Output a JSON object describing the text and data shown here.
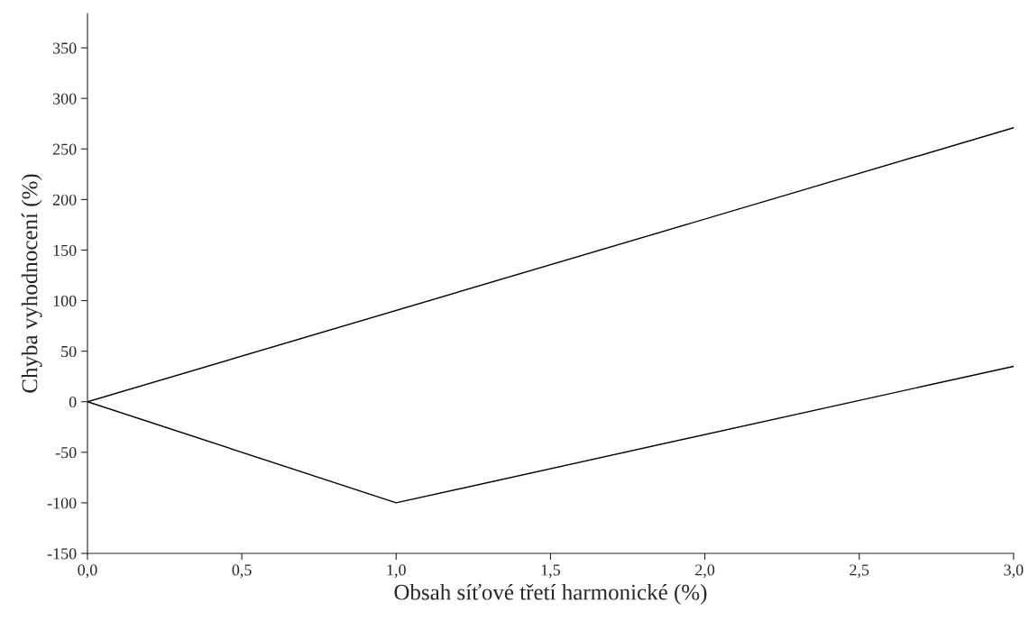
{
  "chart_data": {
    "type": "line",
    "xlabel": "Obsah síťové třetí harmonické (%)",
    "ylabel": "Chyba vyhodnocení (%)",
    "series": [
      {
        "color": "#000000",
        "x": [
          0,
          3.0
        ],
        "values": [
          0,
          271
        ]
      },
      {
        "color": "#000000",
        "x": [
          0,
          1.0,
          3.0
        ],
        "values": [
          0,
          -100,
          35
        ]
      }
    ],
    "xlim": [
      0,
      3.0
    ],
    "ylim": [
      -150,
      384
    ],
    "xticks": [
      {
        "value": 0,
        "label": "0,0"
      },
      {
        "value": 0.5,
        "label": "0,5"
      },
      {
        "value": 1.0,
        "label": "1,0"
      },
      {
        "value": 1.5,
        "label": "1,5"
      },
      {
        "value": 2.0,
        "label": "2,0"
      },
      {
        "value": 2.5,
        "label": "2,5"
      },
      {
        "value": 3.0,
        "label": "3,0"
      }
    ],
    "yticks": [
      {
        "value": -150,
        "label": "-150"
      },
      {
        "value": -100,
        "label": "-100"
      },
      {
        "value": -50,
        "label": "-50"
      },
      0,
      50,
      100,
      150,
      200,
      250,
      300,
      350
    ],
    "grid": false,
    "legend": false,
    "marker": "none",
    "line_style": "solid"
  }
}
